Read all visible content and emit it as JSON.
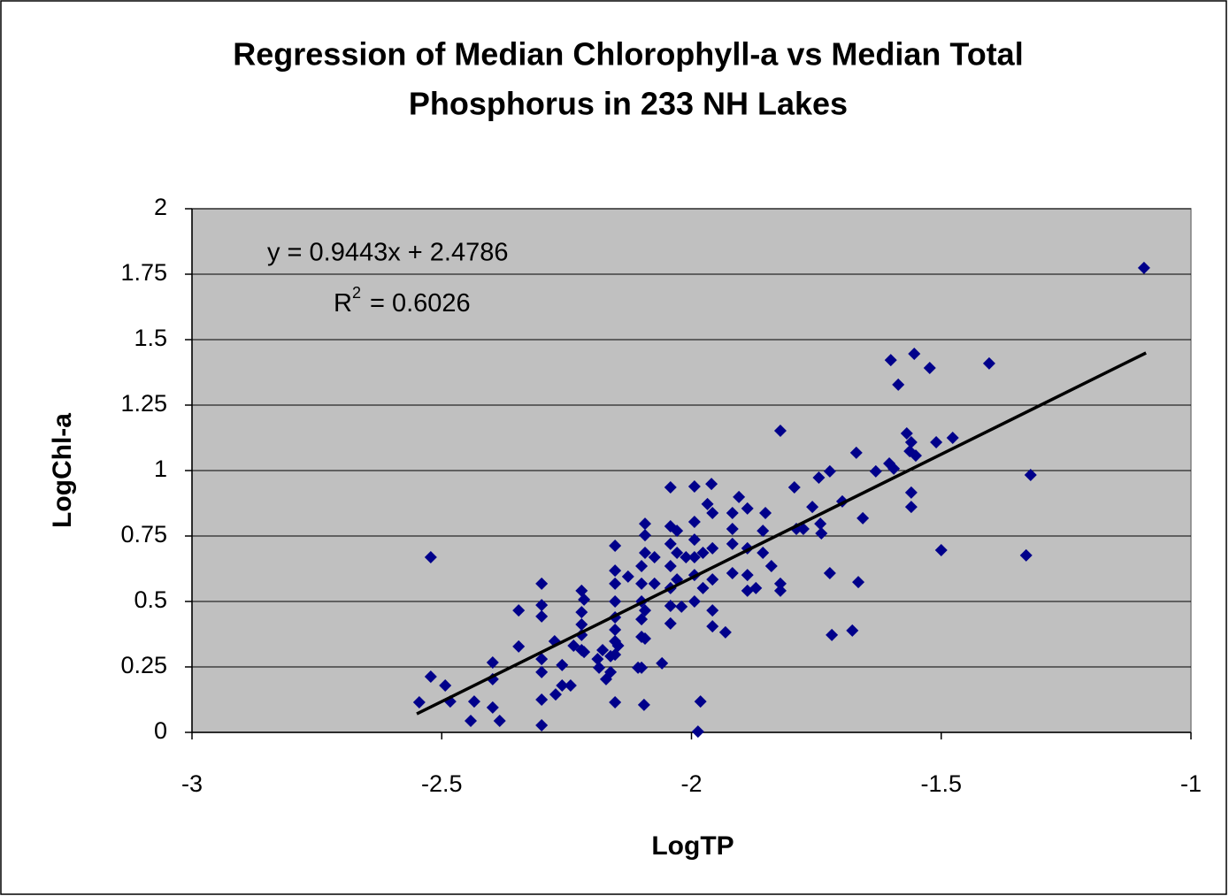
{
  "chart_data": {
    "type": "scatter",
    "title": [
      "Regression of Median Chlorophyll-a vs Median Total",
      "Phosphorus in 233 NH Lakes"
    ],
    "x_label": "LogTP",
    "y_label": "LogChl-a",
    "equation": "y = 0.9443x + 2.4786",
    "r2": {
      "base": "R",
      "sup": "2",
      "text": "= 0.6026"
    },
    "trendline": {
      "slope": 0.9443,
      "intercept": 2.4786,
      "x_range": [
        -2.55,
        -1.09
      ],
      "color": "#000000"
    },
    "color": "#00008b",
    "plot_background": "#c0c0c0",
    "grid": true,
    "xlim": [
      -3,
      -1
    ],
    "xticks": [
      -3,
      -2.5,
      -2,
      -1.5,
      -1
    ],
    "ylim": [
      0,
      2
    ],
    "yticks": [
      0,
      0.25,
      0.5,
      0.75,
      1,
      1.25,
      1.5,
      1.75,
      2
    ],
    "x": [
      -2.545,
      -2.522,
      -2.522,
      -2.493,
      -2.483,
      -2.442,
      -2.435,
      -2.398,
      -2.398,
      -2.398,
      -2.384,
      -2.346,
      -2.346,
      -2.3,
      -2.3,
      -2.3,
      -2.3,
      -2.3,
      -2.3,
      -2.3,
      -2.274,
      -2.272,
      -2.259,
      -2.259,
      -2.242,
      -2.236,
      -2.22,
      -2.22,
      -2.22,
      -2.22,
      -2.22,
      -2.215,
      -2.215,
      -2.188,
      -2.185,
      -2.178,
      -2.171,
      -2.162,
      -2.162,
      -2.153,
      -2.153,
      -2.153,
      -2.153,
      -2.153,
      -2.153,
      -2.153,
      -2.153,
      -2.153,
      -2.127,
      -2.147,
      -2.107,
      -2.1,
      -2.1,
      -2.1,
      -2.1,
      -2.1,
      -2.1,
      -2.095,
      -2.093,
      -2.093,
      -2.093,
      -2.093,
      -2.093,
      -2.074,
      -2.074,
      -2.059,
      -2.042,
      -2.042,
      -2.042,
      -2.042,
      -2.042,
      -2.042,
      -2.042,
      -2.029,
      -2.029,
      -2.029,
      -2.02,
      -2.011,
      -1.994,
      -1.994,
      -1.994,
      -1.994,
      -1.994,
      -1.994,
      -1.987,
      -1.982,
      -1.977,
      -1.977,
      -1.968,
      -1.96,
      -1.958,
      -1.958,
      -1.958,
      -1.958,
      -1.958,
      -1.932,
      -1.918,
      -1.918,
      -1.918,
      -1.918,
      -1.905,
      -1.888,
      -1.888,
      -1.888,
      -1.888,
      -1.871,
      -1.857,
      -1.857,
      -1.852,
      -1.84,
      -1.822,
      -1.822,
      -1.822,
      -1.794,
      -1.79,
      -1.776,
      -1.758,
      -1.745,
      -1.742,
      -1.74,
      -1.723,
      -1.723,
      -1.719,
      -1.698,
      -1.678,
      -1.67,
      -1.666,
      -1.657,
      -1.631,
      -1.604,
      -1.601,
      -1.595,
      -1.586,
      -1.569,
      -1.563,
      -1.56,
      -1.56,
      -1.56,
      -1.554,
      -1.551,
      -1.523,
      -1.51,
      -1.5,
      -1.477,
      -1.404,
      -1.33,
      -1.321,
      -1.094
    ],
    "values": [
      0.115,
      0.669,
      0.213,
      0.179,
      0.118,
      0.044,
      0.118,
      0.267,
      0.203,
      0.095,
      0.044,
      0.466,
      0.328,
      0.568,
      0.486,
      0.443,
      0.28,
      0.23,
      0.125,
      0.027,
      0.348,
      0.145,
      0.257,
      0.179,
      0.179,
      0.331,
      0.541,
      0.459,
      0.412,
      0.372,
      0.314,
      0.507,
      0.307,
      0.28,
      0.247,
      0.314,
      0.203,
      0.291,
      0.23,
      0.713,
      0.618,
      0.568,
      0.5,
      0.439,
      0.392,
      0.348,
      0.297,
      0.115,
      0.595,
      0.331,
      0.247,
      0.635,
      0.568,
      0.5,
      0.432,
      0.365,
      0.247,
      0.105,
      0.797,
      0.753,
      0.686,
      0.466,
      0.358,
      0.669,
      0.568,
      0.264,
      0.936,
      0.787,
      0.72,
      0.635,
      0.551,
      0.483,
      0.416,
      0.77,
      0.686,
      0.584,
      0.48,
      0.669,
      0.939,
      0.804,
      0.736,
      0.669,
      0.601,
      0.5,
      0.003,
      0.118,
      0.686,
      0.551,
      0.872,
      0.949,
      0.838,
      0.703,
      0.584,
      0.466,
      0.405,
      0.382,
      0.838,
      0.777,
      0.72,
      0.608,
      0.899,
      0.855,
      0.703,
      0.601,
      0.541,
      0.551,
      0.77,
      0.686,
      0.838,
      0.635,
      1.152,
      0.568,
      0.541,
      0.936,
      0.777,
      0.777,
      0.861,
      0.973,
      0.797,
      0.76,
      0.997,
      0.608,
      0.372,
      0.882,
      0.389,
      1.068,
      0.574,
      0.818,
      0.997,
      1.027,
      1.422,
      1.007,
      1.328,
      1.142,
      1.074,
      1.108,
      0.916,
      0.861,
      1.446,
      1.057,
      1.392,
      1.108,
      0.696,
      1.125,
      1.409,
      0.676,
      0.983,
      1.774
    ]
  }
}
